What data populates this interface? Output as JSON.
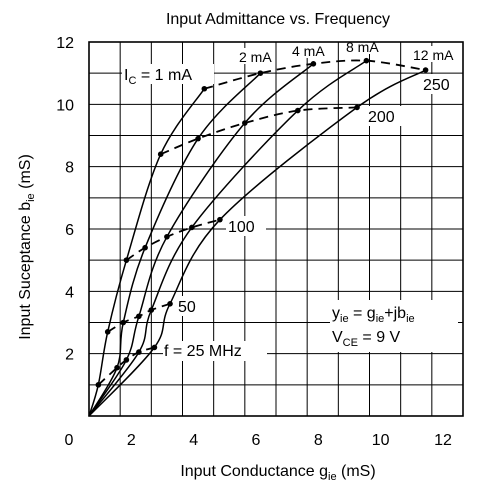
{
  "chart_data": {
    "type": "line",
    "title": "Input Admittance vs. Frequency",
    "xlabel": "Input Conductance",
    "xlabel_symbol": "g",
    "xlabel_sub": "ie",
    "xlabel_unit": "(mS)",
    "ylabel": "Input Suceptance",
    "ylabel_symbol": "b",
    "ylabel_sub": "ie",
    "ylabel_unit": "(mS)",
    "xlim": [
      0,
      12
    ],
    "ylim": [
      0,
      12
    ],
    "xticks": [
      0,
      2,
      4,
      6,
      8,
      10,
      12
    ],
    "yticks": [
      2,
      4,
      6,
      8,
      10,
      12
    ],
    "grid": true,
    "current_curves": [
      {
        "label": "I",
        "label_sub": "C",
        "label_tail": " = 1 mA",
        "points": [
          [
            0.3,
            1.0
          ],
          [
            0.6,
            2.7
          ],
          [
            1.2,
            5.0
          ],
          [
            2.3,
            8.4
          ],
          [
            3.7,
            10.5
          ]
        ]
      },
      {
        "label": "2 mA",
        "points": [
          [
            0.9,
            1.55
          ],
          [
            1.1,
            3.0
          ],
          [
            1.8,
            5.4
          ],
          [
            3.5,
            8.9
          ],
          [
            5.5,
            11.0
          ]
        ]
      },
      {
        "label": "4 mA",
        "points": [
          [
            1.2,
            1.8
          ],
          [
            1.6,
            3.2
          ],
          [
            2.5,
            5.75
          ],
          [
            5.0,
            9.4
          ],
          [
            7.2,
            11.3
          ]
        ]
      },
      {
        "label": "8 mA",
        "points": [
          [
            1.6,
            2.05
          ],
          [
            2.0,
            3.4
          ],
          [
            3.3,
            6.05
          ],
          [
            6.7,
            9.8
          ],
          [
            8.9,
            11.4
          ]
        ]
      },
      {
        "label": "12 mA",
        "points": [
          [
            2.1,
            2.2
          ],
          [
            2.6,
            3.6
          ],
          [
            4.2,
            6.3
          ],
          [
            8.6,
            9.9
          ],
          [
            10.8,
            11.1
          ]
        ]
      }
    ],
    "frequency_curves": [
      {
        "label": "f = 25 MHz",
        "points": [
          [
            0.3,
            1.0
          ],
          [
            0.9,
            1.55
          ],
          [
            1.2,
            1.8
          ],
          [
            1.6,
            2.05
          ],
          [
            2.1,
            2.2
          ]
        ]
      },
      {
        "label": "50",
        "points": [
          [
            0.6,
            2.7
          ],
          [
            1.1,
            3.0
          ],
          [
            1.6,
            3.2
          ],
          [
            2.0,
            3.4
          ],
          [
            2.6,
            3.6
          ]
        ]
      },
      {
        "label": "100",
        "points": [
          [
            1.2,
            5.0
          ],
          [
            1.8,
            5.4
          ],
          [
            2.5,
            5.75
          ],
          [
            3.3,
            6.05
          ],
          [
            4.2,
            6.3
          ]
        ]
      },
      {
        "label": "200",
        "points": [
          [
            2.3,
            8.4
          ],
          [
            3.5,
            8.9
          ],
          [
            5.0,
            9.4
          ],
          [
            6.7,
            9.8
          ],
          [
            8.6,
            9.9
          ]
        ]
      },
      {
        "label": "250",
        "points": [
          [
            3.7,
            10.5
          ],
          [
            5.5,
            11.0
          ],
          [
            7.2,
            11.3
          ],
          [
            8.9,
            11.4
          ],
          [
            10.8,
            11.1
          ]
        ]
      }
    ],
    "annotation": {
      "line1": {
        "y": "y",
        "y_sub": "ie",
        "eq": " = g",
        "g_sub": "ie",
        "plus": "+jb",
        "b_sub": "ie"
      },
      "line2": {
        "v": "V",
        "v_sub": "CE",
        "eq": " = 9 V"
      }
    }
  }
}
